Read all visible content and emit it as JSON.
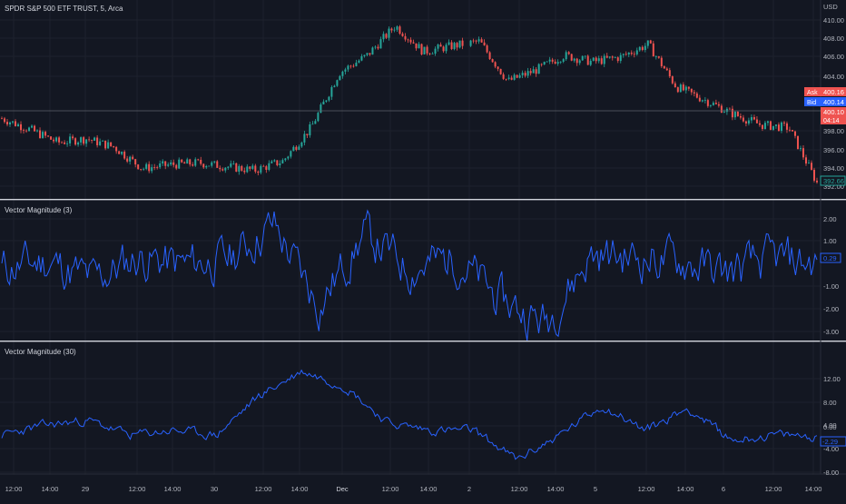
{
  "header": {
    "symbol_title": "SPDR S&P 500 ETF TRUST, 5, Arca",
    "currency": "USD"
  },
  "price_pane": {
    "y_ticks": [
      "410.00",
      "408.00",
      "406.00",
      "404.00",
      "398.00",
      "396.00",
      "394.00",
      "392.00"
    ],
    "ask_label": "Ask",
    "ask_value": "400.16",
    "bid_label": "Bid",
    "bid_value": "400.14",
    "last_value": "400.10",
    "countdown": "04:14",
    "marker_value": "392.66"
  },
  "vm3_pane": {
    "title": "Vector Magnitude (3)",
    "y_ticks": [
      "2.00",
      "1.00",
      "-1.00",
      "-2.00",
      "-3.00"
    ],
    "current_value": "0.29"
  },
  "vm30_pane": {
    "title": "Vector Magnitude (30)",
    "y_ticks": [
      "12.00",
      "8.00",
      "4.00",
      "0.00",
      "-4.00",
      "-8.00"
    ],
    "current_value": "-2.29"
  },
  "time_axis": {
    "labels": [
      "12:00",
      "14:00",
      "29",
      "12:00",
      "14:00",
      "30",
      "12:00",
      "14:00",
      "Dec",
      "12:00",
      "14:00",
      "2",
      "12:00",
      "14:00",
      "5",
      "12:00",
      "14:00",
      "6",
      "12:00",
      "14:00"
    ]
  },
  "colors": {
    "background": "#131722",
    "up": "#26a69a",
    "down": "#ef5350",
    "indicator": "#2962ff",
    "text": "#b2b5be",
    "separator": "#d1d4dc"
  },
  "chart_data": [
    {
      "type": "candlestick",
      "title": "SPDR S&P 500 ETF TRUST, 5, Arca",
      "ylim": [
        391.6,
        411.0
      ],
      "x": [
        "Nov 28 10:00",
        "Nov 28 12:00",
        "Nov 28 14:00",
        "Nov 28 16:00",
        "Nov 29 10:00",
        "Nov 29 12:00",
        "Nov 29 14:00",
        "Nov 29 16:00",
        "Nov 30 10:00",
        "Nov 30 12:00",
        "Nov 30 13:30",
        "Nov 30 14:00",
        "Nov 30 14:30",
        "Nov 30 16:00",
        "Dec 1 10:00",
        "Dec 1 12:00",
        "Dec 1 14:00",
        "Dec 1 16:00",
        "Dec 2 10:00",
        "Dec 2 12:00",
        "Dec 2 14:00",
        "Dec 2 16:00",
        "Dec 5 10:00",
        "Dec 5 12:00",
        "Dec 5 14:00",
        "Dec 5 16:00",
        "Dec 6 10:00",
        "Dec 6 12:00",
        "Dec 6 14:00",
        "Dec 6 16:00"
      ],
      "close": [
        399.6,
        398.4,
        397.0,
        397.4,
        396.5,
        394.2,
        394.6,
        394.8,
        394.4,
        394.0,
        395.0,
        398.6,
        404.5,
        406.4,
        409.6,
        406.8,
        407.4,
        407.9,
        403.6,
        404.8,
        406.4,
        405.7,
        406.2,
        407.6,
        403.0,
        401.6,
        400.1,
        398.9,
        398.6,
        392.66
      ],
      "ask": 400.16,
      "bid": 400.14,
      "last": 400.1
    },
    {
      "type": "line",
      "title": "Vector Magnitude (3)",
      "ylim": [
        -3.5,
        2.6
      ],
      "x": [
        "Nov 28 10:00",
        "Nov 28 14:00",
        "Nov 29 10:00",
        "Nov 29 14:00",
        "Nov 30 10:00",
        "Nov 30 14:00",
        "Nov 30 14:30",
        "Nov 30 15:00",
        "Dec 1 10:00",
        "Dec 1 12:00",
        "Dec 1 14:00",
        "Dec 2 10:00",
        "Dec 2 12:00",
        "Dec 2 14:00",
        "Dec 5 10:00",
        "Dec 5 14:00",
        "Dec 6 10:00",
        "Dec 6 14:00",
        "Dec 6 16:00"
      ],
      "values": [
        0.0,
        0.4,
        -0.6,
        0.6,
        0.2,
        0.5,
        2.3,
        -1.9,
        1.8,
        0.0,
        0.6,
        -1.6,
        -2.8,
        0.7,
        0.6,
        0.4,
        -0.2,
        0.5,
        0.29
      ]
    },
    {
      "type": "line",
      "title": "Vector Magnitude (30)",
      "ylim": [
        -9.5,
        13.5
      ],
      "x": [
        "Nov 28 10:00",
        "Nov 28 14:00",
        "Nov 29 10:00",
        "Nov 29 14:00",
        "Nov 30 10:00",
        "Nov 30 14:00",
        "Nov 30 14:30",
        "Nov 30 15:30",
        "Dec 1 10:00",
        "Dec 1 12:00",
        "Dec 1 14:00",
        "Dec 2 10:00",
        "Dec 2 12:00",
        "Dec 2 14:00",
        "Dec 5 10:00",
        "Dec 5 12:00",
        "Dec 5 14:00",
        "Dec 6 10:00",
        "Dec 6 14:00",
        "Dec 6 16:00"
      ],
      "values": [
        -2.0,
        0.0,
        1.0,
        -2.0,
        -1.0,
        -2.0,
        6.0,
        11.0,
        8.0,
        0.5,
        -1.0,
        -1.0,
        -7.0,
        -2.0,
        4.0,
        -1.0,
        3.5,
        -3.0,
        -2.0,
        -2.29
      ]
    }
  ]
}
